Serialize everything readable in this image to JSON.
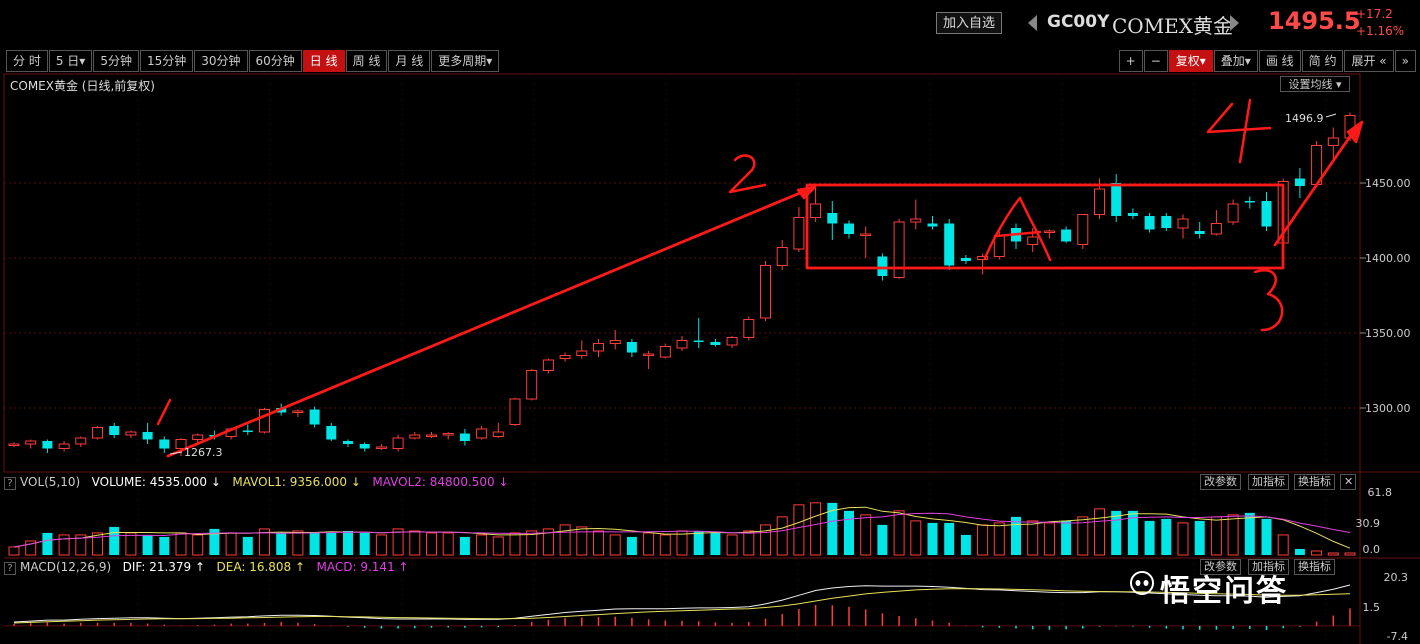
{
  "header": {
    "add_watch": "加入自选",
    "symbol": "GC00Y",
    "name": "COMEX黄金",
    "price": "1495.5",
    "change": "+17.2",
    "change_pct": "+1.16%"
  },
  "periods": [
    {
      "label": "分 时",
      "active": false
    },
    {
      "label": "5 日▾",
      "active": false
    },
    {
      "label": "5分钟",
      "active": false
    },
    {
      "label": "15分钟",
      "active": false
    },
    {
      "label": "30分钟",
      "active": false
    },
    {
      "label": "60分钟",
      "active": false
    },
    {
      "label": "日 线",
      "active": true
    },
    {
      "label": "周 线",
      "active": false
    },
    {
      "label": "月 线",
      "active": false
    },
    {
      "label": "更多周期▾",
      "active": false
    }
  ],
  "right_toolbar": [
    {
      "label": "+",
      "active": false
    },
    {
      "label": "−",
      "active": false
    },
    {
      "label": "复权▾",
      "active": true
    },
    {
      "label": "叠加▾",
      "active": false
    },
    {
      "label": "画 线",
      "active": false
    },
    {
      "label": "简 约",
      "active": false
    },
    {
      "label": "展开 «",
      "active": false
    },
    {
      "label": "»",
      "active": false
    }
  ],
  "main_panel": {
    "label": "COMEX黄金 (日线,前复权)",
    "set_ma": "设置均线 ▾",
    "high_label": "1496.9",
    "low_label": "1267.3",
    "annotations": [
      "1",
      "2",
      "3",
      "4",
      "A"
    ]
  },
  "volume_panel": {
    "q": "?",
    "name": "VOL(5,10)",
    "volume": "VOLUME: 4535.000 ↓",
    "mavol1": "MAVOL1: 9356.000 ↓",
    "mavol2": "MAVOL2: 84800.500 ↓",
    "axis": [
      "61.8",
      "30.9",
      "0.0"
    ]
  },
  "macd_panel": {
    "q": "?",
    "name": "MACD(12,26,9)",
    "dif": "DIF: 21.379 ↑",
    "dea": "DEA: 16.808 ↑",
    "macd": "MACD: 9.141 ↑",
    "axis": [
      "20.3",
      "1.5",
      "-7.4"
    ]
  },
  "panel_buttons": [
    "改参数",
    "加指标",
    "换指标"
  ],
  "close_glyph": "✕",
  "watermark": "悟空问答",
  "colors": {
    "up": "#ff3c3c",
    "down": "#00e5e5",
    "bg": "#000000",
    "annotation": "#ff1a1a"
  },
  "chart_data": {
    "type": "candlestick",
    "yaxis_ticks": [
      1300,
      1350,
      1400,
      1450
    ],
    "ylim": [
      1260,
      1510
    ],
    "candles": [
      {
        "o": 1275,
        "h": 1277,
        "l": 1274,
        "c": 1276
      },
      {
        "o": 1276,
        "h": 1279,
        "l": 1273,
        "c": 1278
      },
      {
        "o": 1278,
        "h": 1279,
        "l": 1270,
        "c": 1273
      },
      {
        "o": 1273,
        "h": 1278,
        "l": 1271,
        "c": 1276
      },
      {
        "o": 1276,
        "h": 1281,
        "l": 1274,
        "c": 1280
      },
      {
        "o": 1280,
        "h": 1288,
        "l": 1279,
        "c": 1287
      },
      {
        "o": 1288,
        "h": 1290,
        "l": 1280,
        "c": 1282
      },
      {
        "o": 1282,
        "h": 1285,
        "l": 1280,
        "c": 1284
      },
      {
        "o": 1284,
        "h": 1290,
        "l": 1276,
        "c": 1279
      },
      {
        "o": 1279,
        "h": 1281,
        "l": 1270,
        "c": 1273
      },
      {
        "o": 1273,
        "h": 1280,
        "l": 1268,
        "c": 1279
      },
      {
        "o": 1279,
        "h": 1283,
        "l": 1277,
        "c": 1282
      },
      {
        "o": 1282,
        "h": 1285,
        "l": 1279,
        "c": 1281
      },
      {
        "o": 1281,
        "h": 1287,
        "l": 1279,
        "c": 1286
      },
      {
        "o": 1285,
        "h": 1289,
        "l": 1282,
        "c": 1284
      },
      {
        "o": 1284,
        "h": 1300,
        "l": 1283,
        "c": 1299
      },
      {
        "o": 1300,
        "h": 1303,
        "l": 1295,
        "c": 1297
      },
      {
        "o": 1297,
        "h": 1299,
        "l": 1294,
        "c": 1298
      },
      {
        "o": 1299,
        "h": 1301,
        "l": 1287,
        "c": 1289
      },
      {
        "o": 1288,
        "h": 1290,
        "l": 1278,
        "c": 1279
      },
      {
        "o": 1278,
        "h": 1279,
        "l": 1274,
        "c": 1276
      },
      {
        "o": 1276,
        "h": 1277,
        "l": 1271,
        "c": 1273
      },
      {
        "o": 1273,
        "h": 1276,
        "l": 1272,
        "c": 1274
      },
      {
        "o": 1273,
        "h": 1282,
        "l": 1271,
        "c": 1280
      },
      {
        "o": 1280,
        "h": 1284,
        "l": 1279,
        "c": 1282
      },
      {
        "o": 1282,
        "h": 1284,
        "l": 1280,
        "c": 1282
      },
      {
        "o": 1282,
        "h": 1284,
        "l": 1279,
        "c": 1283
      },
      {
        "o": 1283,
        "h": 1286,
        "l": 1275,
        "c": 1278
      },
      {
        "o": 1280,
        "h": 1288,
        "l": 1279,
        "c": 1286
      },
      {
        "o": 1281,
        "h": 1290,
        "l": 1280,
        "c": 1284
      },
      {
        "o": 1289,
        "h": 1307,
        "l": 1288,
        "c": 1306
      },
      {
        "o": 1306,
        "h": 1326,
        "l": 1305,
        "c": 1325
      },
      {
        "o": 1325,
        "h": 1333,
        "l": 1323,
        "c": 1332
      },
      {
        "o": 1333,
        "h": 1337,
        "l": 1331,
        "c": 1335
      },
      {
        "o": 1335,
        "h": 1345,
        "l": 1333,
        "c": 1338
      },
      {
        "o": 1338,
        "h": 1346,
        "l": 1334,
        "c": 1343
      },
      {
        "o": 1343,
        "h": 1352,
        "l": 1339,
        "c": 1345
      },
      {
        "o": 1344,
        "h": 1346,
        "l": 1334,
        "c": 1337
      },
      {
        "o": 1336,
        "h": 1338,
        "l": 1326,
        "c": 1336
      },
      {
        "o": 1334,
        "h": 1343,
        "l": 1333,
        "c": 1341
      },
      {
        "o": 1340,
        "h": 1348,
        "l": 1338,
        "c": 1345
      },
      {
        "o": 1345,
        "h": 1360,
        "l": 1340,
        "c": 1344
      },
      {
        "o": 1344,
        "h": 1346,
        "l": 1341,
        "c": 1342
      },
      {
        "o": 1342,
        "h": 1348,
        "l": 1340,
        "c": 1347
      },
      {
        "o": 1347,
        "h": 1361,
        "l": 1345,
        "c": 1359
      },
      {
        "o": 1360,
        "h": 1398,
        "l": 1358,
        "c": 1395
      },
      {
        "o": 1395,
        "h": 1412,
        "l": 1392,
        "c": 1407
      },
      {
        "o": 1406,
        "h": 1434,
        "l": 1404,
        "c": 1427
      },
      {
        "o": 1427,
        "h": 1447,
        "l": 1424,
        "c": 1436
      },
      {
        "o": 1430,
        "h": 1438,
        "l": 1412,
        "c": 1423
      },
      {
        "o": 1423,
        "h": 1425,
        "l": 1413,
        "c": 1416
      },
      {
        "o": 1416,
        "h": 1421,
        "l": 1400,
        "c": 1416
      },
      {
        "o": 1401,
        "h": 1403,
        "l": 1385,
        "c": 1388
      },
      {
        "o": 1387,
        "h": 1426,
        "l": 1386,
        "c": 1424
      },
      {
        "o": 1424,
        "h": 1439,
        "l": 1419,
        "c": 1426
      },
      {
        "o": 1423,
        "h": 1428,
        "l": 1419,
        "c": 1421
      },
      {
        "o": 1423,
        "h": 1426,
        "l": 1392,
        "c": 1395
      },
      {
        "o": 1400,
        "h": 1402,
        "l": 1396,
        "c": 1398
      },
      {
        "o": 1399,
        "h": 1403,
        "l": 1389,
        "c": 1401
      },
      {
        "o": 1401,
        "h": 1419,
        "l": 1399,
        "c": 1415
      },
      {
        "o": 1420,
        "h": 1423,
        "l": 1406,
        "c": 1411
      },
      {
        "o": 1409,
        "h": 1420,
        "l": 1404,
        "c": 1414
      },
      {
        "o": 1417,
        "h": 1419,
        "l": 1413,
        "c": 1418
      },
      {
        "o": 1419,
        "h": 1421,
        "l": 1410,
        "c": 1411
      },
      {
        "o": 1409,
        "h": 1429,
        "l": 1406,
        "c": 1429
      },
      {
        "o": 1429,
        "h": 1453,
        "l": 1426,
        "c": 1446
      },
      {
        "o": 1450,
        "h": 1456,
        "l": 1424,
        "c": 1428
      },
      {
        "o": 1430,
        "h": 1433,
        "l": 1426,
        "c": 1428
      },
      {
        "o": 1428,
        "h": 1430,
        "l": 1417,
        "c": 1419
      },
      {
        "o": 1428,
        "h": 1430,
        "l": 1418,
        "c": 1420
      },
      {
        "o": 1420,
        "h": 1429,
        "l": 1413,
        "c": 1426
      },
      {
        "o": 1418,
        "h": 1424,
        "l": 1413,
        "c": 1416
      },
      {
        "o": 1416,
        "h": 1432,
        "l": 1415,
        "c": 1423
      },
      {
        "o": 1424,
        "h": 1439,
        "l": 1422,
        "c": 1436
      },
      {
        "o": 1438,
        "h": 1441,
        "l": 1433,
        "c": 1437
      },
      {
        "o": 1438,
        "h": 1444,
        "l": 1418,
        "c": 1421
      },
      {
        "o": 1410,
        "h": 1453,
        "l": 1408,
        "c": 1451
      },
      {
        "o": 1453,
        "h": 1460,
        "l": 1440,
        "c": 1448
      },
      {
        "o": 1449,
        "h": 1478,
        "l": 1447,
        "c": 1475
      },
      {
        "o": 1475,
        "h": 1487,
        "l": 1465,
        "c": 1480
      },
      {
        "o": 1480,
        "h": 1497,
        "l": 1478,
        "c": 1495
      }
    ],
    "volume_max": 61.8,
    "volume": [
      8,
      14,
      22,
      20,
      20,
      22,
      28,
      22,
      20,
      18,
      22,
      20,
      26,
      22,
      18,
      26,
      22,
      24,
      22,
      22,
      24,
      22,
      20,
      26,
      24,
      22,
      22,
      18,
      20,
      18,
      22,
      24,
      26,
      30,
      28,
      24,
      20,
      18,
      22,
      20,
      24,
      24,
      22,
      20,
      24,
      30,
      38,
      50,
      52,
      52,
      44,
      40,
      30,
      44,
      34,
      32,
      32,
      20,
      30,
      32,
      38,
      34,
      32,
      34,
      38,
      46,
      44,
      44,
      34,
      36,
      32,
      34,
      38,
      40,
      42,
      36,
      20,
      6,
      4,
      2,
      2
    ],
    "macd_range": [
      -7.4,
      24
    ],
    "dif": [
      2,
      2.5,
      3,
      3,
      3.5,
      3.8,
      4,
      4.2,
      4.2,
      4,
      3.8,
      4,
      4.2,
      4.6,
      4.8,
      5.2,
      5.6,
      5.6,
      5.4,
      5,
      4.6,
      4.2,
      3.8,
      3.6,
      3.6,
      3.6,
      3.6,
      3.4,
      3.4,
      3.4,
      4,
      5,
      6,
      7,
      7.6,
      8.2,
      8.8,
      9,
      9,
      9,
      9.2,
      9.4,
      9.4,
      9.6,
      10,
      11.5,
      13.5,
      16,
      18.5,
      19.8,
      20.6,
      21,
      20.8,
      20.8,
      20.8,
      20.6,
      20.2,
      19.6,
      19,
      18.8,
      18.4,
      18,
      17.6,
      17.4,
      17.4,
      17.8,
      17.8,
      17.6,
      17.2,
      16.8,
      16.4,
      16,
      15.8,
      15.8,
      15.6,
      15,
      15.4,
      15.8,
      17.4,
      19.2,
      21.4
    ],
    "dea": [
      1.5,
      1.8,
      2.1,
      2.4,
      2.7,
      3,
      3.2,
      3.4,
      3.6,
      3.7,
      3.7,
      3.8,
      3.9,
      4,
      4.2,
      4.4,
      4.6,
      4.8,
      4.9,
      4.9,
      4.8,
      4.7,
      4.5,
      4.3,
      4.2,
      4.1,
      4,
      3.9,
      3.8,
      3.7,
      3.8,
      4,
      4.4,
      4.9,
      5.4,
      5.9,
      6.4,
      6.9,
      7.3,
      7.6,
      7.9,
      8.2,
      8.5,
      8.8,
      9,
      9.6,
      10.4,
      11.6,
      13,
      14.4,
      15.6,
      16.7,
      17.5,
      18.2,
      18.8,
      19.2,
      19.4,
      19.5,
      19.4,
      19.3,
      19.1,
      18.9,
      18.6,
      18.3,
      18.1,
      18,
      17.9,
      17.8,
      17.7,
      17.5,
      17.3,
      17,
      16.8,
      16.6,
      16.4,
      16.1,
      16,
      16,
      16.3,
      16.5,
      16.8
    ]
  }
}
